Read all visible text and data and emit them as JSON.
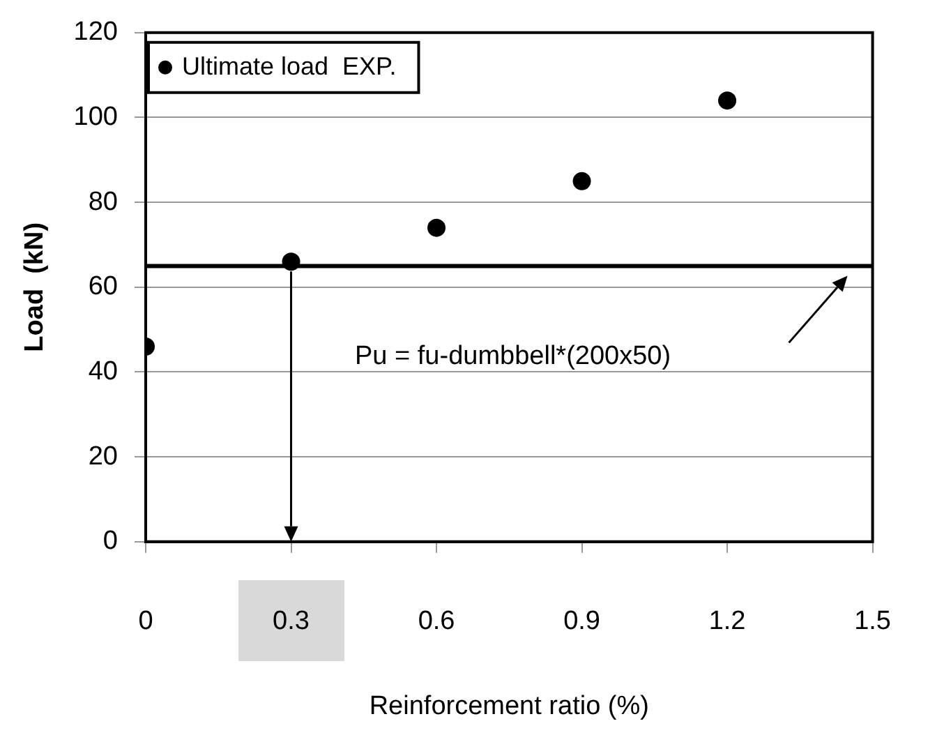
{
  "chart_data": {
    "type": "scatter",
    "xlabel": "Reinforcement ratio (%)",
    "ylabel": "Load  (kN)",
    "x": [
      0,
      0.3,
      0.6,
      0.9,
      1.2
    ],
    "series": [
      {
        "name": "Ultimate load  EXP.",
        "color": "#000000",
        "values": [
          46,
          66,
          74,
          85,
          104
        ]
      }
    ],
    "xlim": [
      0,
      1.5
    ],
    "xticks": [
      0,
      0.3,
      0.6,
      0.9,
      1.2,
      1.5
    ],
    "ylim": [
      0,
      120
    ],
    "yticks": [
      0,
      20,
      40,
      60,
      80,
      100,
      120
    ],
    "ref_lines": [
      {
        "axis": "y",
        "value": 65,
        "label": "Pu = fu-dumbbell*(200x50)",
        "color": "#000000"
      }
    ],
    "grid": "y",
    "legend": "top left",
    "marker": "circle"
  }
}
